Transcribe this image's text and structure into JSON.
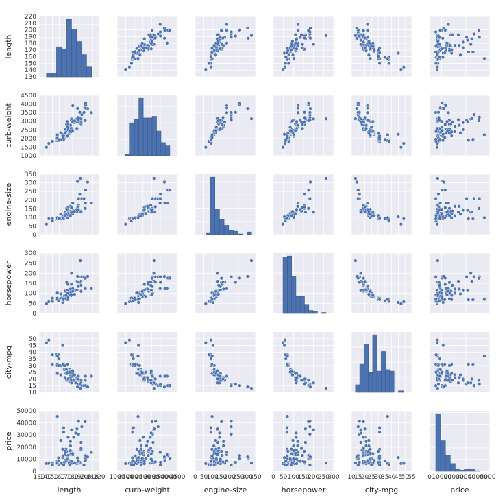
{
  "chart_data": {
    "type": "scatter",
    "kind": "pairplot",
    "variables": [
      "length",
      "curb-weight",
      "engine-size",
      "horsepower",
      "city-mpg",
      "price"
    ],
    "grid": true,
    "colors": {
      "background": "#ffffff",
      "panel": "#eaeaf2",
      "grid": "#ffffff",
      "marker": "#4c72b0",
      "marker_edge": "#ffffff",
      "text": "#333333"
    },
    "axes": {
      "length": {
        "label": "length",
        "range": [
          130,
          220
        ],
        "y_ticks": [
          130,
          140,
          150,
          160,
          170,
          180,
          190,
          200,
          210,
          220
        ],
        "x_ticks": [
          130,
          140,
          150,
          160,
          170,
          180,
          190,
          200,
          210,
          220
        ],
        "x_tick_labels": [
          "130",
          "140",
          "150",
          "160",
          "170",
          "180",
          "190",
          "200",
          "210",
          "220"
        ]
      },
      "curb-weight": {
        "label": "curb-weight",
        "range": [
          1000,
          4500
        ],
        "y_ticks": [
          1000,
          1500,
          2000,
          2500,
          3000,
          3500,
          4000,
          4500
        ],
        "x_ticks": [
          1000,
          1500,
          2000,
          2500,
          3000,
          3500,
          4000,
          4500
        ],
        "x_tick_labels": [
          "1000",
          "1500",
          "2000",
          "2500",
          "3000",
          "3500",
          "4000",
          "4500"
        ]
      },
      "engine-size": {
        "label": "engine-size",
        "range": [
          0,
          350
        ],
        "y_ticks": [
          0,
          50,
          100,
          150,
          200,
          250,
          300,
          350
        ],
        "x_ticks": [
          0,
          50,
          100,
          150,
          200,
          250,
          300,
          350
        ],
        "x_tick_labels": [
          "0",
          "50",
          "100",
          "150",
          "200",
          "250",
          "300",
          "350"
        ]
      },
      "horsepower": {
        "label": "horsepower",
        "range": [
          0,
          300
        ],
        "y_ticks": [
          0,
          50,
          100,
          150,
          200,
          250,
          300
        ],
        "x_ticks": [
          0,
          50,
          100,
          150,
          200,
          250,
          300
        ],
        "x_tick_labels": [
          "0",
          "50",
          "100",
          "150",
          "200",
          "250",
          "300"
        ]
      },
      "city-mpg": {
        "label": "city-mpg",
        "range": [
          10,
          55
        ],
        "y_ticks": [
          10,
          15,
          20,
          25,
          30,
          35,
          40,
          45,
          50
        ],
        "x_ticks": [
          10,
          15,
          20,
          25,
          30,
          35,
          40,
          45,
          50,
          55
        ],
        "x_tick_labels": [
          "10",
          "15",
          "20",
          "25",
          "30",
          "35",
          "40",
          "45",
          "50",
          "55"
        ]
      },
      "price": {
        "label": "price",
        "range": [
          0,
          50000
        ],
        "y_ticks": [
          0,
          10000,
          20000,
          30000,
          40000,
          50000
        ],
        "x_ticks": [
          0,
          10000,
          20000,
          30000,
          40000,
          50000
        ],
        "x_tick_labels": [
          "0",
          "10000",
          "20000",
          "30000",
          "40000",
          "50000"
        ]
      }
    },
    "histograms": {
      "length": {
        "bin_edges": [
          141,
          148.5,
          156,
          163.5,
          171,
          178.5,
          186,
          193.5,
          201,
          208.5
        ],
        "counts": [
          3,
          3,
          23,
          21,
          44,
          36,
          27,
          17,
          8
        ]
      },
      "curb-weight": {
        "bin_edges": [
          1488,
          1745,
          2002,
          2259,
          2516,
          2773,
          3030,
          3287,
          3544,
          3801,
          4058
        ],
        "counts": [
          1,
          20,
          22,
          35,
          23,
          23,
          24,
          15,
          8,
          6
        ]
      },
      "engine-size": {
        "bin_edges": [
          61,
          87.6,
          114.2,
          140.8,
          167.4,
          194,
          220.6,
          247.2,
          273.8,
          300.4,
          327
        ],
        "counts": [
          3,
          87,
          38,
          23,
          14,
          6,
          5,
          1,
          0,
          4
        ]
      },
      "horsepower": {
        "bin_edges": [
          48,
          69.4,
          90.8,
          112.2,
          133.6,
          155,
          176.4,
          197.8,
          219.2,
          240.6,
          262
        ],
        "counts": [
          56,
          57,
          37,
          17,
          17,
          9,
          3,
          2,
          0,
          1
        ]
      },
      "city-mpg": {
        "bin_edges": [
          13,
          16.2,
          19.4,
          22.6,
          25.8,
          29,
          32.2,
          35.4,
          38.6,
          41.8,
          45,
          48.2,
          49
        ],
        "counts": [
          5,
          19,
          32,
          13,
          38,
          14,
          27,
          15,
          14,
          0,
          1,
          1
        ]
      },
      "price": {
        "bin_edges": [
          5118,
          9157,
          13196,
          17235,
          21274,
          25313,
          29352,
          33391,
          37430,
          41469,
          45508
        ],
        "counts": [
          98,
          52,
          27,
          13,
          3,
          2,
          3,
          3,
          1,
          0
        ]
      }
    },
    "samples": {
      "length": [
        168.8,
        168.8,
        171.2,
        176.6,
        176.6,
        177.3,
        192.7,
        192.7,
        192.7,
        178.2,
        176.8,
        176.8,
        176.8,
        176.8,
        189.0,
        189.0,
        193.8,
        197.0,
        141.1,
        155.9,
        158.8,
        157.3,
        157.3,
        157.3,
        157.3,
        157.3,
        157.3,
        174.6,
        173.2,
        144.6,
        150.0,
        150.0,
        163.4,
        157.1,
        167.5,
        167.5,
        175.4,
        169.1,
        170.7,
        172.6,
        199.6,
        199.6,
        191.7,
        159.1,
        166.8,
        166.8,
        166.8,
        166.8,
        177.8,
        177.8,
        175.0,
        190.9,
        187.5,
        202.6,
        180.3,
        208.1,
        199.2,
        178.4,
        173.0,
        173.0,
        172.4,
        165.3,
        165.3,
        170.2,
        162.4,
        173.4,
        181.7,
        184.6,
        178.5,
        186.7,
        198.9,
        157.3,
        168.9,
        175.7,
        186.6,
        188.8,
        187.8,
        171.7,
        159.3,
        165.7,
        180.2,
        180.2,
        183.1,
        188.8
      ],
      "curb-weight": [
        2548,
        2548,
        2823,
        2337,
        2824,
        2507,
        2844,
        2954,
        3086,
        3053,
        2395,
        2395,
        2710,
        2765,
        3055,
        3230,
        3380,
        3505,
        1488,
        1874,
        1909,
        1876,
        1876,
        2128,
        1967,
        1989,
        2191,
        2535,
        2811,
        1713,
        1819,
        1837,
        1940,
        2010,
        2024,
        2236,
        2289,
        2304,
        2372,
        2465,
        3950,
        4066,
        3139,
        1890,
        1900,
        1905,
        1945,
        1950,
        2380,
        2385,
        2410,
        3515,
        3750,
        3740,
        3900,
        3495,
        3770,
        2579,
        2460,
        2658,
        2140,
        2240,
        2145,
        2385,
        2324,
        2510,
        2920,
        2976,
        3131,
        3151,
        3034,
        2212,
        2300,
        2403,
        2579,
        2952,
        3217,
        2975,
        1938,
        2050,
        2458,
        2976,
        3016,
        3045
      ],
      "engine-size": [
        130,
        130,
        152,
        109,
        136,
        136,
        136,
        136,
        131,
        131,
        108,
        108,
        164,
        164,
        209,
        209,
        209,
        209,
        61,
        90,
        90,
        90,
        90,
        98,
        90,
        90,
        98,
        122,
        156,
        92,
        92,
        79,
        92,
        92,
        92,
        110,
        110,
        110,
        110,
        110,
        258,
        258,
        326,
        91,
        91,
        91,
        91,
        91,
        122,
        122,
        122,
        234,
        308,
        304,
        183,
        183,
        183,
        156,
        122,
        122,
        97,
        103,
        97,
        120,
        119,
        141,
        141,
        141,
        130,
        131,
        152,
        98,
        110,
        110,
        146,
        171,
        161,
        146,
        92,
        97,
        120,
        130,
        134,
        145
      ],
      "horsepower": [
        111,
        111,
        154,
        102,
        115,
        110,
        110,
        140,
        160,
        101,
        101,
        101,
        121,
        121,
        182,
        182,
        182,
        182,
        48,
        70,
        70,
        68,
        68,
        102,
        68,
        68,
        102,
        88,
        145,
        58,
        76,
        60,
        76,
        76,
        76,
        86,
        86,
        86,
        86,
        100,
        176,
        176,
        262,
        68,
        68,
        68,
        68,
        70,
        88,
        88,
        88,
        155,
        184,
        184,
        123,
        123,
        123,
        145,
        84,
        84,
        69,
        55,
        69,
        90,
        97,
        114,
        114,
        114,
        200,
        160,
        175,
        70,
        73,
        92,
        116,
        156,
        156,
        116,
        62,
        69,
        110,
        92,
        95,
        134
      ],
      "city-mpg": [
        21,
        21,
        19,
        24,
        18,
        19,
        19,
        19,
        17,
        23,
        23,
        23,
        21,
        21,
        16,
        16,
        15,
        15,
        47,
        38,
        38,
        37,
        31,
        24,
        31,
        31,
        24,
        24,
        19,
        49,
        31,
        38,
        30,
        30,
        30,
        27,
        27,
        27,
        27,
        25,
        15,
        15,
        13,
        30,
        31,
        31,
        31,
        31,
        26,
        26,
        26,
        16,
        14,
        14,
        22,
        22,
        22,
        19,
        25,
        25,
        31,
        45,
        31,
        24,
        23,
        20,
        19,
        17,
        17,
        20,
        19,
        37,
        30,
        25,
        21,
        19,
        20,
        24,
        35,
        31,
        24,
        26,
        23,
        22
      ],
      "price": [
        13495,
        16500,
        16500,
        13950,
        17450,
        15250,
        17710,
        18920,
        23875,
        16430,
        16925,
        20970,
        21105,
        24565,
        30760,
        41315,
        36880,
        5151,
        6295,
        6575,
        5572,
        6377,
        7957,
        6229,
        6692,
        7609,
        8558,
        8921,
        12964,
        6479,
        6855,
        5399,
        6529,
        7129,
        7295,
        7295,
        7895,
        9095,
        8845,
        10295,
        12945,
        10345,
        6785,
        11048,
        32250,
        35550,
        36000,
        5195,
        6095,
        6795,
        6695,
        7395,
        10945,
        11845,
        13645,
        15645,
        8845,
        8495,
        10595,
        10245,
        10795,
        11245,
        18280,
        18344,
        25552,
        28248,
        28176,
        31600,
        34184,
        35056,
        40960,
        45400,
        16503,
        5389,
        6189,
        6669,
        7689,
        9959,
        8499,
        12629,
        14869,
        14489,
        6989,
        8189
      ]
    }
  }
}
